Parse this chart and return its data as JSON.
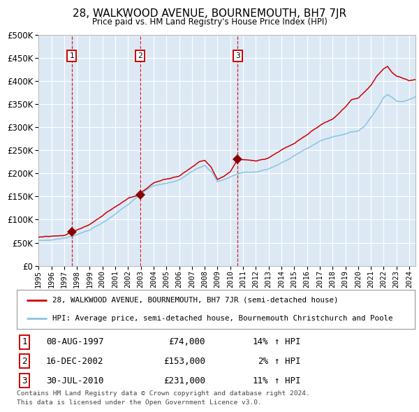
{
  "title": "28, WALKWOOD AVENUE, BOURNEMOUTH, BH7 7JR",
  "subtitle": "Price paid vs. HM Land Registry's House Price Index (HPI)",
  "legend_line1": "28, WALKWOOD AVENUE, BOURNEMOUTH, BH7 7JR (semi-detached house)",
  "legend_line2": "HPI: Average price, semi-detached house, Bournemouth Christchurch and Poole",
  "footer1": "Contains HM Land Registry data © Crown copyright and database right 2024.",
  "footer2": "This data is licensed under the Open Government Licence v3.0.",
  "table_rows": [
    {
      "num": "1",
      "date": "08-AUG-1997",
      "price": "£74,000",
      "pct": "14%",
      "dir": "↑",
      "label": "HPI"
    },
    {
      "num": "2",
      "date": "16-DEC-2002",
      "price": "£153,000",
      "pct": "2%",
      "dir": "↑",
      "label": "HPI"
    },
    {
      "num": "3",
      "date": "30-JUL-2010",
      "price": "£231,000",
      "pct": "11%",
      "dir": "↑",
      "label": "HPI"
    }
  ],
  "trans_dates": [
    1997.6,
    2002.96,
    2010.58
  ],
  "trans_prices": [
    74000,
    153000,
    231000
  ],
  "ylim": [
    0,
    500000
  ],
  "yticks": [
    0,
    50000,
    100000,
    150000,
    200000,
    250000,
    300000,
    350000,
    400000,
    450000,
    500000
  ],
  "xlim_start": 1995.0,
  "xlim_end": 2024.5,
  "plot_bg_color": "#dce9f5",
  "grid_color": "#ffffff",
  "hpi_color": "#89c4e1",
  "price_color": "#cc0000",
  "vline_color": "#cc0000",
  "marker_color": "#8b0000",
  "box_color": "#cc0000"
}
